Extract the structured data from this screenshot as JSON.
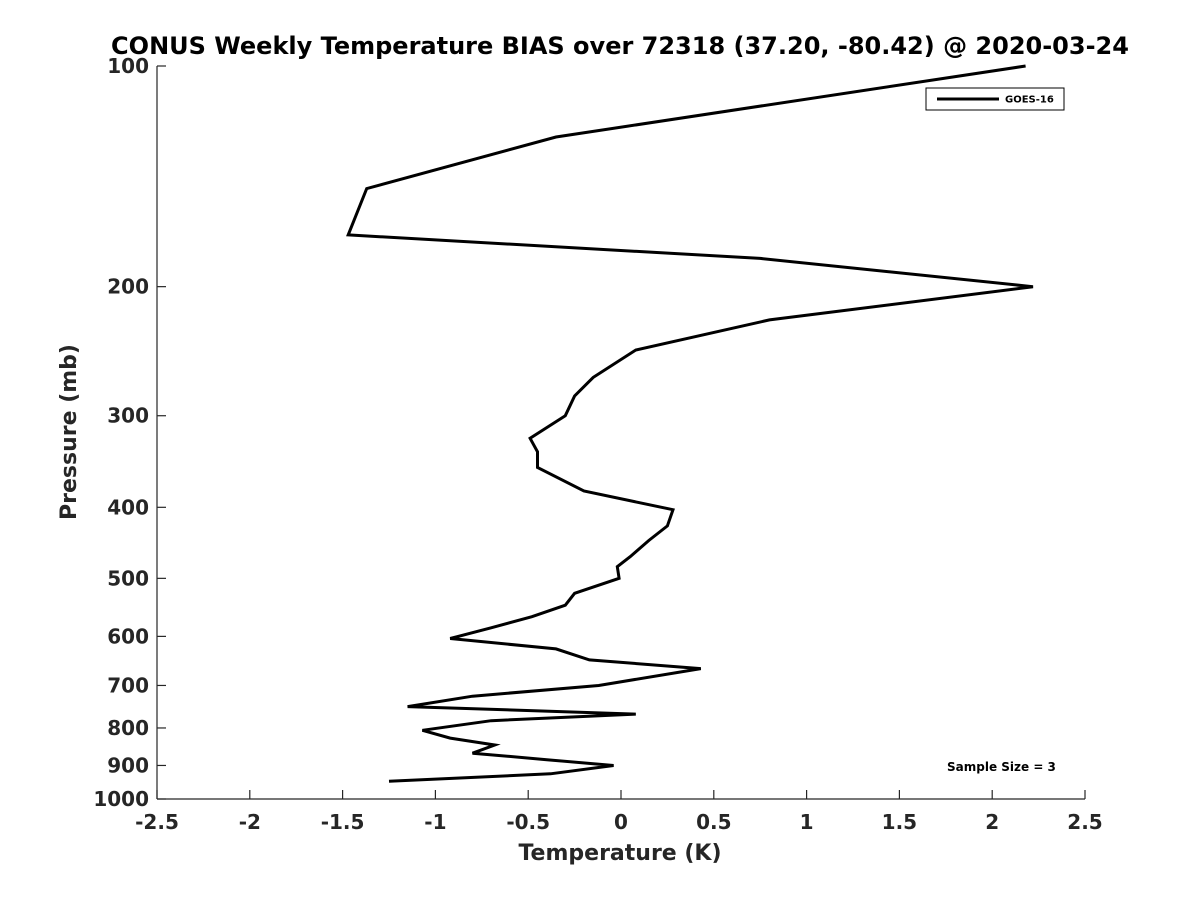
{
  "chart_data": {
    "type": "line",
    "title": "CONUS Weekly Temperature BIAS over 72318 (37.20, -80.42) @ 2020-03-24",
    "xlabel": "Temperature (K)",
    "ylabel": "Pressure (mb)",
    "xlim": [
      -2.5,
      2.5
    ],
    "ylim": [
      100,
      1000
    ],
    "y_scale": "log",
    "y_reversed": true,
    "x_ticks": [
      "-2.5",
      "-2",
      "-1.5",
      "-1",
      "-0.5",
      "0",
      "0.5",
      "1",
      "1.5",
      "2",
      "2.5"
    ],
    "y_ticks": [
      "100",
      "200",
      "300",
      "400",
      "500",
      "600",
      "700",
      "800",
      "900",
      "1000"
    ],
    "grid": false,
    "legend_position": "top-right",
    "series": [
      {
        "name": "GOES-16",
        "color": "#000000",
        "points": [
          [
            2.18,
            100
          ],
          [
            -0.35,
            125
          ],
          [
            -1.37,
            147
          ],
          [
            -1.47,
            170
          ],
          [
            0.75,
            183
          ],
          [
            2.22,
            200
          ],
          [
            0.8,
            222
          ],
          [
            0.08,
            244
          ],
          [
            -0.15,
            266
          ],
          [
            -0.25,
            282
          ],
          [
            -0.3,
            300
          ],
          [
            -0.49,
            322
          ],
          [
            -0.45,
            336
          ],
          [
            -0.45,
            353
          ],
          [
            -0.2,
            380
          ],
          [
            0.28,
            403
          ],
          [
            0.25,
            424
          ],
          [
            0.15,
            444
          ],
          [
            0.05,
            467
          ],
          [
            -0.02,
            482
          ],
          [
            -0.01,
            500
          ],
          [
            -0.25,
            524
          ],
          [
            -0.3,
            544
          ],
          [
            -0.48,
            564
          ],
          [
            -0.7,
            584
          ],
          [
            -0.92,
            604
          ],
          [
            -0.35,
            624
          ],
          [
            -0.17,
            646
          ],
          [
            0.43,
            664
          ],
          [
            -0.12,
            700
          ],
          [
            -0.8,
            724
          ],
          [
            -1.15,
            748
          ],
          [
            0.08,
            766
          ],
          [
            -0.7,
            782
          ],
          [
            -1.07,
            806
          ],
          [
            -0.92,
            826
          ],
          [
            -0.68,
            844
          ],
          [
            -0.8,
            866
          ],
          [
            -0.4,
            884
          ],
          [
            -0.04,
            900
          ],
          [
            -0.38,
            924
          ],
          [
            -1.25,
            946
          ]
        ]
      }
    ],
    "annotations": [
      "Sample Size = 3"
    ]
  }
}
